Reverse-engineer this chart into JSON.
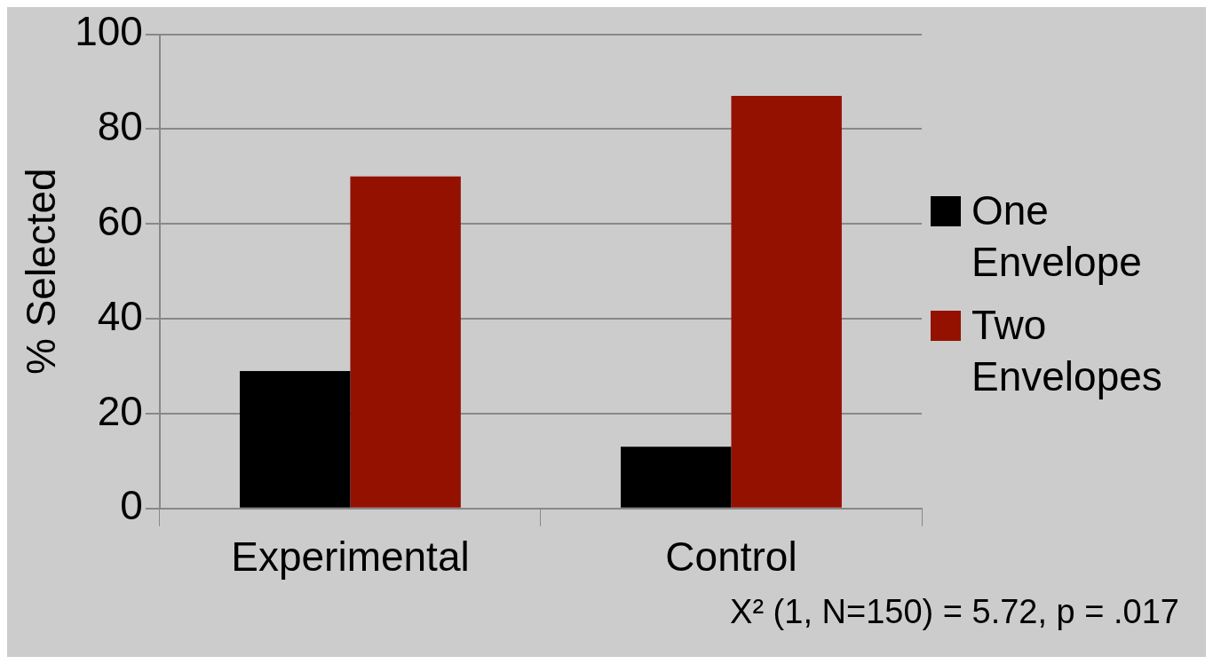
{
  "chart_data": {
    "type": "bar",
    "categories": [
      "Experimental",
      "Control"
    ],
    "series": [
      {
        "name": "One Envelope",
        "color": "#000000",
        "values": [
          29,
          13
        ]
      },
      {
        "name": "Two Envelopes",
        "color": "#941100",
        "values": [
          70,
          87
        ]
      }
    ],
    "ylabel": "% Selected",
    "ylim": [
      0,
      100
    ],
    "yticks": [
      0,
      20,
      40,
      60,
      80,
      100
    ],
    "grid": "y",
    "legend": "right",
    "annotations": [
      "X² (1, N=150) = 5.72, p = .017"
    ]
  }
}
